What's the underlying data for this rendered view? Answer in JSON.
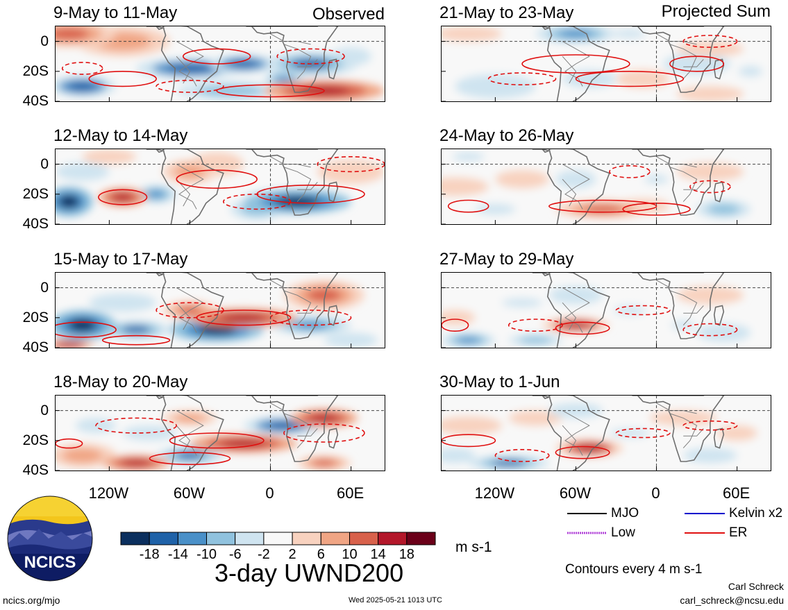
{
  "header": {
    "observed_label": "Observed",
    "projected_label": "Projected Sum"
  },
  "panels": [
    {
      "title": "9-May to 11-May",
      "column": "left",
      "row": 0,
      "pattern": 0
    },
    {
      "title": "12-May to 14-May",
      "column": "left",
      "row": 1,
      "pattern": 1
    },
    {
      "title": "15-May to 17-May",
      "column": "left",
      "row": 2,
      "pattern": 2
    },
    {
      "title": "18-May to 20-May",
      "column": "left",
      "row": 3,
      "pattern": 3
    },
    {
      "title": "21-May to 23-May",
      "column": "right",
      "row": 0,
      "pattern": 4
    },
    {
      "title": "24-May to 26-May",
      "column": "right",
      "row": 1,
      "pattern": 5
    },
    {
      "title": "27-May to 29-May",
      "column": "right",
      "row": 2,
      "pattern": 6
    },
    {
      "title": "30-May to 1-Jun",
      "column": "right",
      "row": 3,
      "pattern": 7
    }
  ],
  "y_ticks": [
    "0",
    "20S",
    "40S"
  ],
  "x_ticks": [
    "120W",
    "60W",
    "0",
    "60E"
  ],
  "colorbar": {
    "ticks": [
      "-18",
      "-14",
      "-10",
      "-6",
      "-2",
      "2",
      "6",
      "10",
      "14",
      "18"
    ],
    "colors": [
      "#0b2f5e",
      "#1f62a8",
      "#4a90c8",
      "#90c2de",
      "#cfe4f0",
      "#f8f8f8",
      "#f8d2bf",
      "#f0a584",
      "#d8614b",
      "#b3172a",
      "#6b0019"
    ],
    "units": "m s-1"
  },
  "main_title": "3-day UWND200",
  "legend": {
    "mjo": "MJO",
    "kelvin": "Kelvin x2",
    "low": "Low",
    "er": "ER",
    "mjo_color": "#000000",
    "kelvin_color": "#0000cc",
    "low_color": "#b040d8",
    "er_color": "#e01010",
    "contours_note": "Contours every 4 m s-1"
  },
  "logo": {
    "text": "NCICS"
  },
  "footer": {
    "url": "ncics.org/mjo",
    "timestamp": "Wed 2025-05-21 1013 UTC",
    "author": "Carl Schreck",
    "email": "carl_schreck@ncsu.edu"
  }
}
